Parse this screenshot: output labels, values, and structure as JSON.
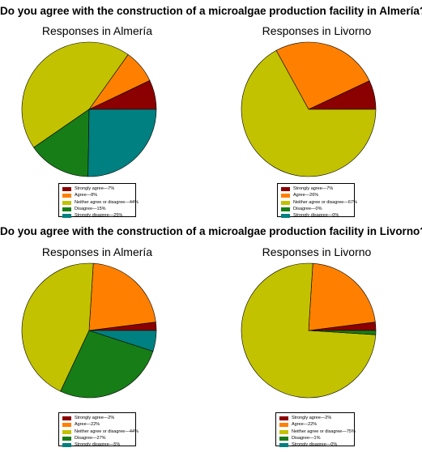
{
  "chart_data": [
    {
      "type": "pie",
      "question": "Do you agree with the construction of a microalgae production facility in Almería?",
      "title": "Responses in Almería",
      "categories": [
        "Strongly agree",
        "Agree",
        "Neither agree or disagree",
        "Disagree",
        "Strongly disagree"
      ],
      "values": [
        7,
        8,
        44,
        15,
        25
      ],
      "legend_labels": [
        "Strongly agree—7%",
        "Agree—8%",
        "Neither agree or disagree—44%",
        "Disagree—15%",
        "Strongly disagree—25%"
      ],
      "legend_position": "bottom"
    },
    {
      "type": "pie",
      "question": "Do you agree with the construction of a microalgae production facility in Almería?",
      "title": "Responses in Livorno",
      "categories": [
        "Strongly agree",
        "Agree",
        "Neither agree or disagree",
        "Disagree",
        "Strongly disagree"
      ],
      "values": [
        7,
        26,
        67,
        0,
        0
      ],
      "legend_labels": [
        "Strongly agree—7%",
        "Agree—26%",
        "Neither agree or disagree—67%",
        "Disagree—0%",
        "Strongly disagree—0%"
      ],
      "legend_position": "bottom"
    },
    {
      "type": "pie",
      "question": "Do you agree with the construction of a microalgae production facility in Livorno?",
      "title": "Responses in Almería",
      "categories": [
        "Strongly agree",
        "Agree",
        "Neither agree or disagree",
        "Disagree",
        "Strongly disagree"
      ],
      "values": [
        2,
        22,
        44,
        27,
        5
      ],
      "legend_labels": [
        "Strongly agree—2%",
        "Agree—22%",
        "Neither agree or disagree—44%",
        "Disagree—27%",
        "Strongly disagree—5%"
      ],
      "legend_position": "bottom"
    },
    {
      "type": "pie",
      "question": "Do you agree with the construction of a microalgae production facility in Livorno?",
      "title": "Responses in Livorno",
      "categories": [
        "Strongly agree",
        "Agree",
        "Neither agree or disagree",
        "Disagree",
        "Strongly disagree"
      ],
      "values": [
        2,
        22,
        75,
        1,
        0
      ],
      "legend_labels": [
        "Strongly agree—2%",
        "Agree—22%",
        "Neither agree or disagree—75%",
        "Disagree—1%",
        "Strongly disagree—0%"
      ],
      "legend_position": "bottom"
    }
  ],
  "colors": {
    "strongly_agree": "#8b0000",
    "agree": "#ff8000",
    "neither": "#c2c200",
    "disagree": "#177d17",
    "strongly_disagree": "#008080",
    "outline": "#000000"
  },
  "sections": [
    {
      "title": "Do you agree with the construction of a microalgae production facility in Almería?"
    },
    {
      "title": "Do you agree with the construction of a microalgae production facility in Livorno?"
    }
  ]
}
